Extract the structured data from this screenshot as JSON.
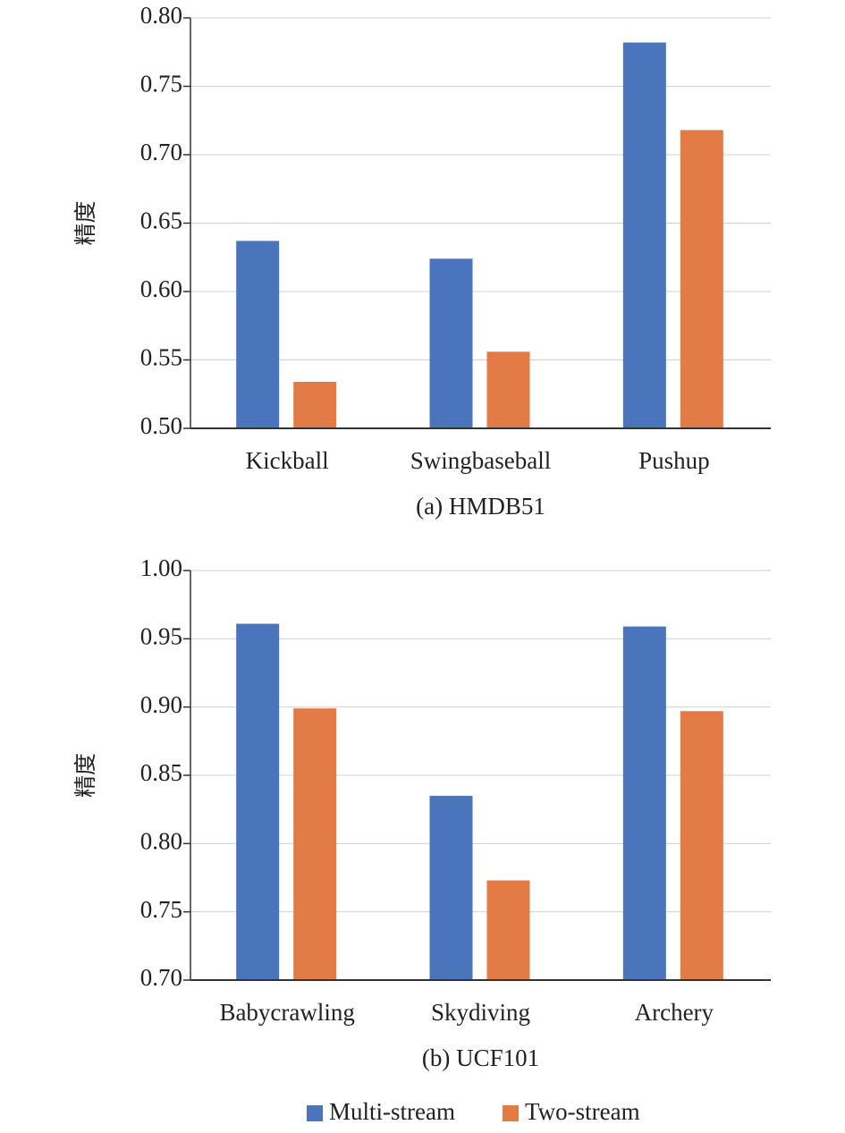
{
  "chart_data": [
    {
      "type": "bar",
      "y_label": "精度",
      "caption": "(a) HMDB51",
      "categories": [
        "Kickball",
        "Swingbaseball",
        "Pushup"
      ],
      "series": [
        {
          "name": "Multi-stream",
          "color": "#4a75bc",
          "values": [
            0.637,
            0.624,
            0.782
          ]
        },
        {
          "name": "Two-stream",
          "color": "#e27b45",
          "values": [
            0.534,
            0.556,
            0.718
          ]
        }
      ],
      "ylim": [
        0.5,
        0.8
      ],
      "yticks": [
        {
          "value": 0.5,
          "label": "0.50"
        },
        {
          "value": 0.55,
          "label": "0.55"
        },
        {
          "value": 0.6,
          "label": "0.60"
        },
        {
          "value": 0.65,
          "label": "0.65"
        },
        {
          "value": 0.7,
          "label": "0.70"
        },
        {
          "value": 0.75,
          "label": "0.75"
        },
        {
          "value": 0.8,
          "label": "0.80"
        }
      ],
      "grid": true
    },
    {
      "type": "bar",
      "y_label": "精度",
      "caption": "(b) UCF101",
      "categories": [
        "Babycrawling",
        "Skydiving",
        "Archery"
      ],
      "series": [
        {
          "name": "Multi-stream",
          "color": "#4a75bc",
          "values": [
            0.961,
            0.835,
            0.959
          ]
        },
        {
          "name": "Two-stream",
          "color": "#e27b45",
          "values": [
            0.899,
            0.773,
            0.897
          ]
        }
      ],
      "ylim": [
        0.7,
        1.0
      ],
      "yticks": [
        {
          "value": 0.7,
          "label": "0.70"
        },
        {
          "value": 0.75,
          "label": "0.75"
        },
        {
          "value": 0.8,
          "label": "0.80"
        },
        {
          "value": 0.85,
          "label": "0.85"
        },
        {
          "value": 0.9,
          "label": "0.90"
        },
        {
          "value": 0.95,
          "label": "0.95"
        },
        {
          "value": 1.0,
          "label": "1.00"
        }
      ],
      "grid": true,
      "legend": "bottom"
    }
  ]
}
